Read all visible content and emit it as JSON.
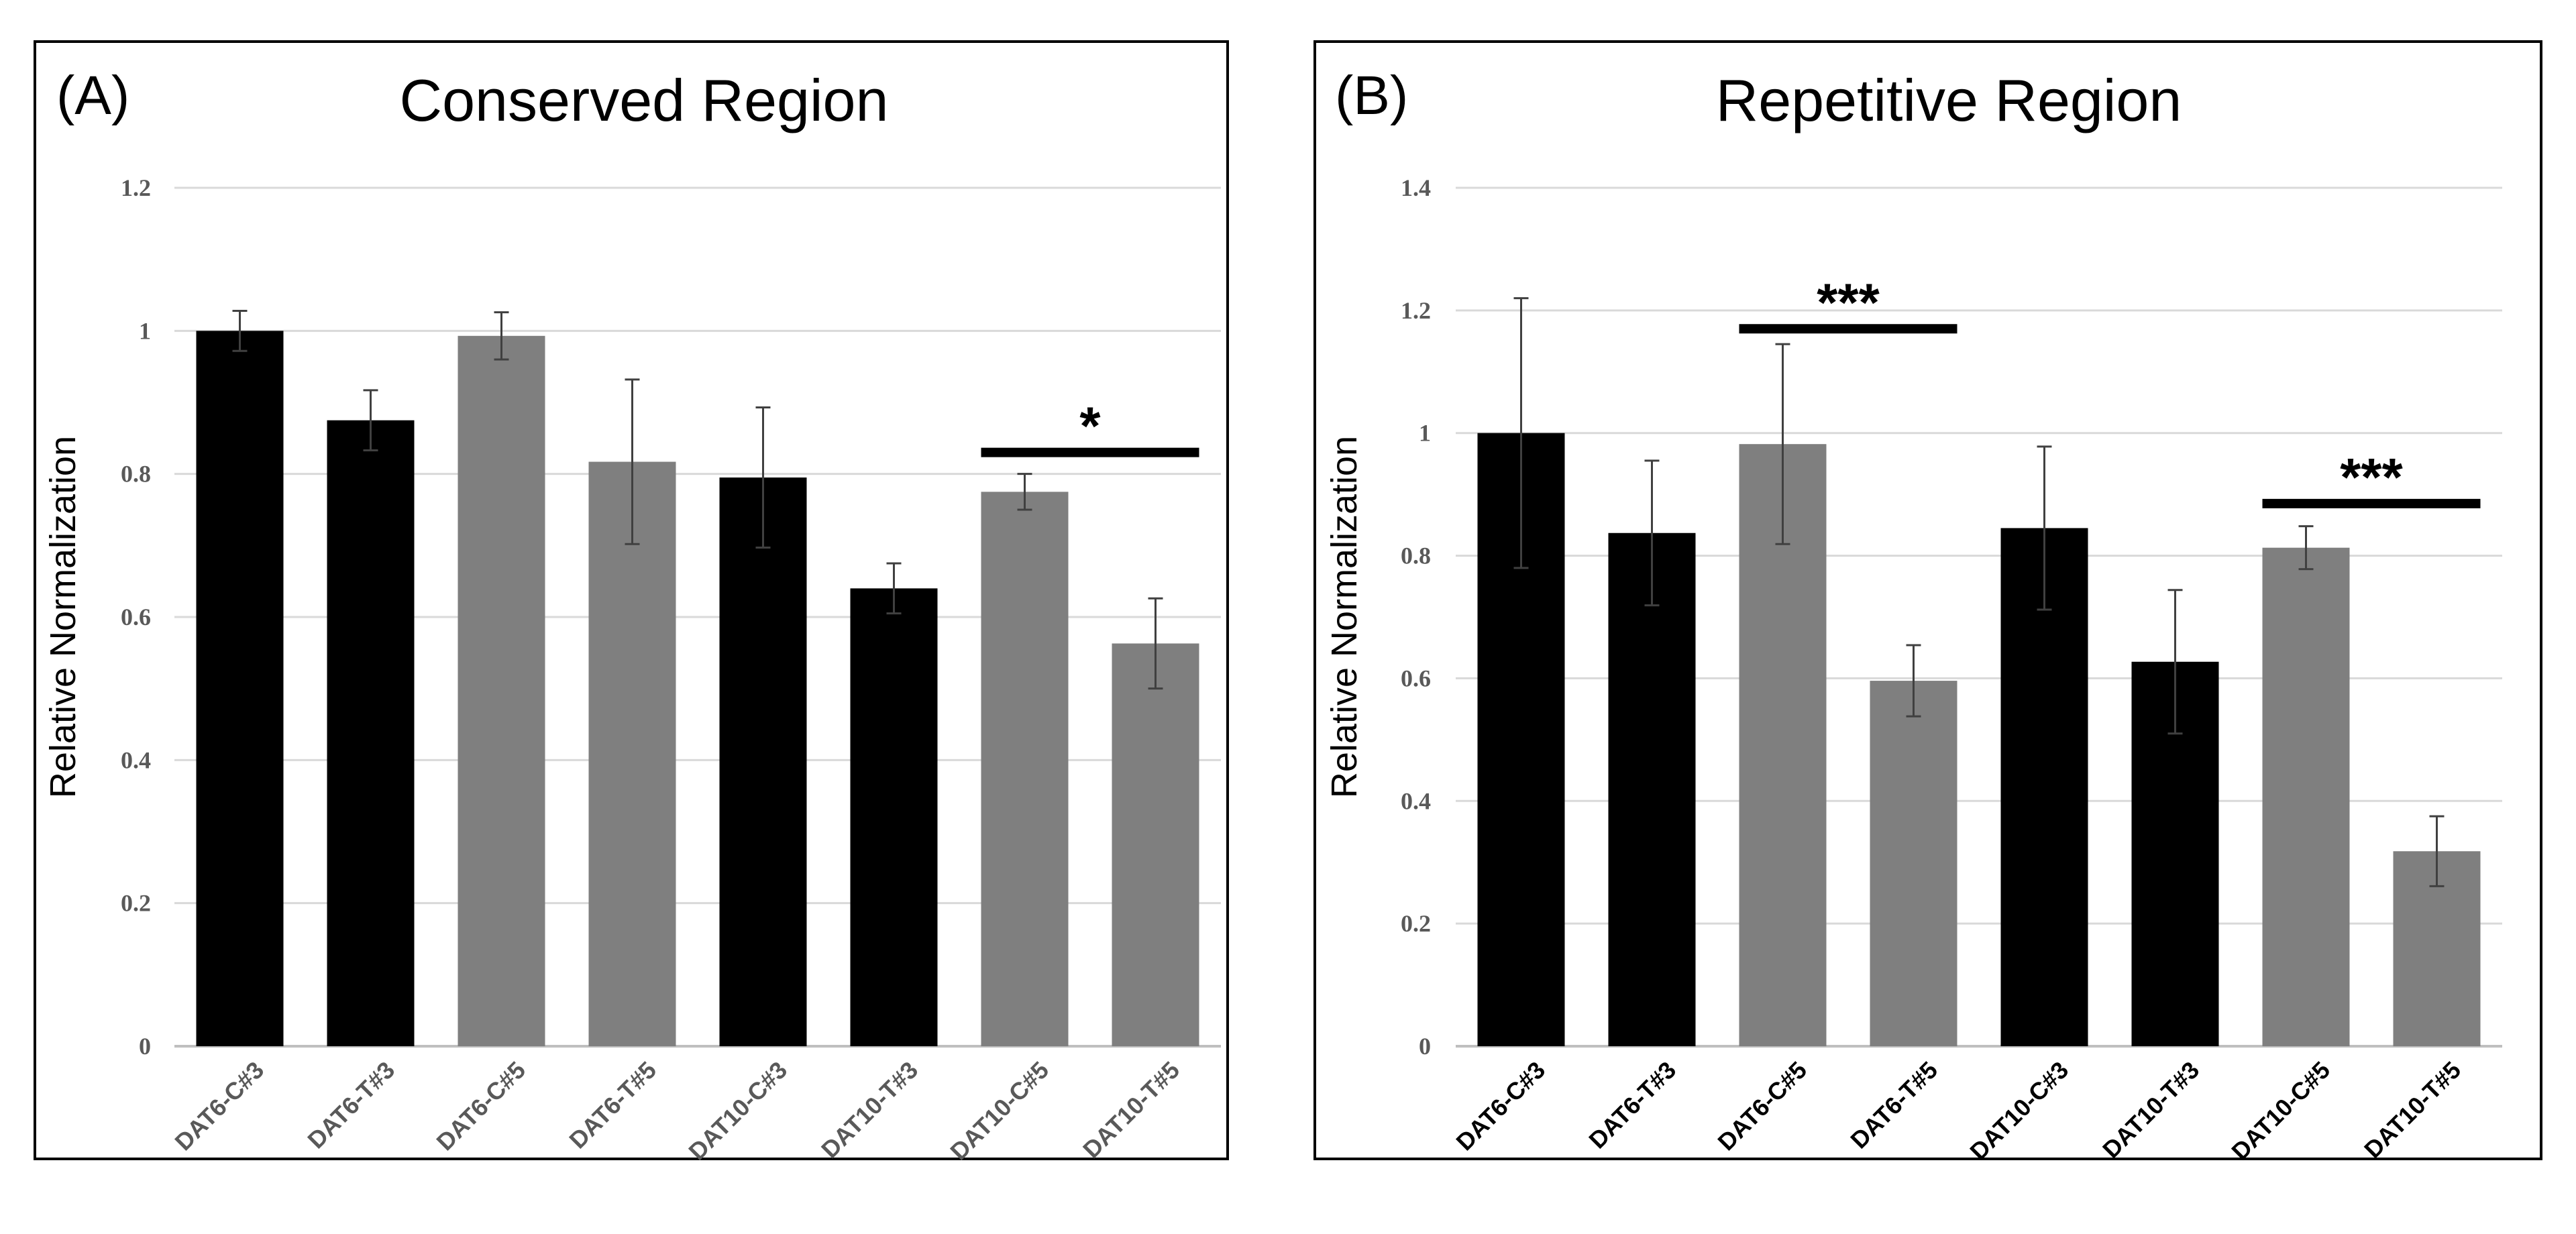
{
  "colors": {
    "dark": "#000000",
    "gray": "#7f7f7f",
    "gray_tick": "#595959",
    "grid": "#d9d9d9"
  },
  "chart_data": [
    {
      "panel_label": "(A)",
      "type": "bar",
      "title": "Conserved Region",
      "xlabel": "",
      "ylabel": "Relative Normalization",
      "ylim": [
        0,
        1.2
      ],
      "yticks": [
        "0",
        "0.2",
        "0.4",
        "0.6",
        "0.8",
        "1",
        "1.2"
      ],
      "grid": true,
      "categories": [
        "DAT6-C#3",
        "DAT6-T#3",
        "DAT6-C#5",
        "DAT6-T#5",
        "DAT10-C#3",
        "DAT10-T#3",
        "DAT10-C#5",
        "DAT10-T#5"
      ],
      "values": [
        1.0,
        0.875,
        0.993,
        0.817,
        0.795,
        0.64,
        0.775,
        0.563
      ],
      "errors": [
        0.028,
        0.042,
        0.033,
        0.115,
        0.098,
        0.035,
        0.025,
        0.063
      ],
      "bar_colors": [
        "dark",
        "dark",
        "gray",
        "gray",
        "dark",
        "dark",
        "gray",
        "gray"
      ],
      "tick_colors": [
        "gray_tick",
        "gray_tick",
        "gray_tick",
        "gray_tick",
        "gray_tick",
        "gray_tick",
        "gray_tick",
        "gray_tick"
      ],
      "significance": [
        {
          "from": 6,
          "to": 7,
          "y": 0.83,
          "label": "*"
        }
      ]
    },
    {
      "panel_label": "(B)",
      "type": "bar",
      "title": "Repetitive Region",
      "xlabel": "",
      "ylabel": "Relative Normalization",
      "ylim": [
        0,
        1.4
      ],
      "yticks": [
        "0",
        "0.2",
        "0.4",
        "0.6",
        "0.8",
        "1",
        "1.2",
        "1.4"
      ],
      "grid": true,
      "categories": [
        "DAT6-C#3",
        "DAT6-T#3",
        "DAT6-C#5",
        "DAT6-T#5",
        "DAT10-C#3",
        "DAT10-T#3",
        "DAT10-C#5",
        "DAT10-T#5"
      ],
      "values": [
        1.0,
        0.837,
        0.982,
        0.596,
        0.845,
        0.627,
        0.813,
        0.318
      ],
      "errors": [
        0.22,
        0.118,
        0.163,
        0.058,
        0.133,
        0.117,
        0.035,
        0.057
      ],
      "bar_colors": [
        "dark",
        "dark",
        "gray",
        "gray",
        "dark",
        "dark",
        "gray",
        "gray"
      ],
      "tick_colors": [
        "dark",
        "dark",
        "dark",
        "dark",
        "dark",
        "dark",
        "dark",
        "dark"
      ],
      "significance": [
        {
          "from": 2,
          "to": 3,
          "y": 1.17,
          "label": "***"
        },
        {
          "from": 6,
          "to": 7,
          "y": 0.885,
          "label": "***"
        }
      ]
    }
  ]
}
